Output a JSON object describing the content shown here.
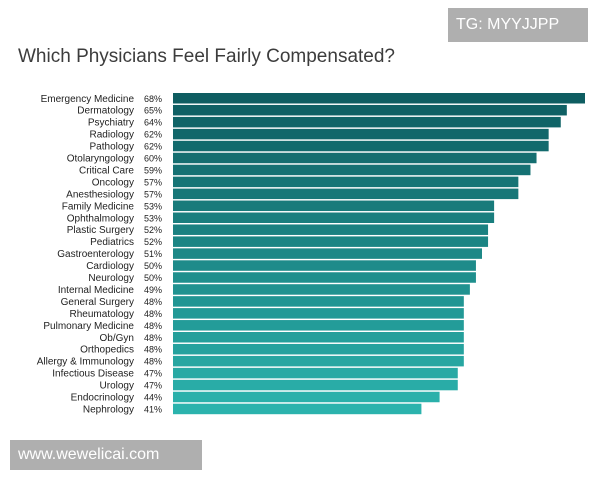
{
  "watermarks": {
    "top": "TG: MYYJJPP",
    "bottom": "www.wewelicai.com"
  },
  "chart_data": {
    "type": "bar",
    "orientation": "horizontal",
    "title": "Which Physicians Feel Fairly Compensated?",
    "categories": [
      "Emergency Medicine",
      "Dermatology",
      "Psychiatry",
      "Radiology",
      "Pathology",
      "Otolaryngology",
      "Critical Care",
      "Oncology",
      "Anesthesiology",
      "Family Medicine",
      "Ophthalmology",
      "Plastic Surgery",
      "Pediatrics",
      "Gastroenterology",
      "Cardiology",
      "Neurology",
      "Internal Medicine",
      "General Surgery",
      "Rheumatology",
      "Pulmonary Medicine",
      "Ob/Gyn",
      "Orthopedics",
      "Allergy & Immunology",
      "Infectious Disease",
      "Urology",
      "Endocrinology",
      "Nephrology"
    ],
    "values": [
      68,
      65,
      64,
      62,
      62,
      60,
      59,
      57,
      57,
      53,
      53,
      52,
      52,
      51,
      50,
      50,
      49,
      48,
      48,
      48,
      48,
      48,
      48,
      47,
      47,
      44,
      41
    ],
    "value_labels": [
      "68%",
      "65%",
      "64%",
      "62%",
      "62%",
      "60%",
      "59%",
      "57%",
      "57%",
      "53%",
      "53%",
      "52%",
      "52%",
      "51%",
      "50%",
      "50%",
      "49%",
      "48%",
      "48%",
      "48%",
      "48%",
      "48%",
      "48%",
      "47%",
      "47%",
      "44%",
      "41%"
    ],
    "unit": "%",
    "xlabel": "",
    "ylabel": "",
    "xlim": [
      0,
      68
    ],
    "grid": false,
    "legend": "none",
    "colors": {
      "top": "#0e5d61",
      "bottom": "#2bb3ad"
    }
  }
}
